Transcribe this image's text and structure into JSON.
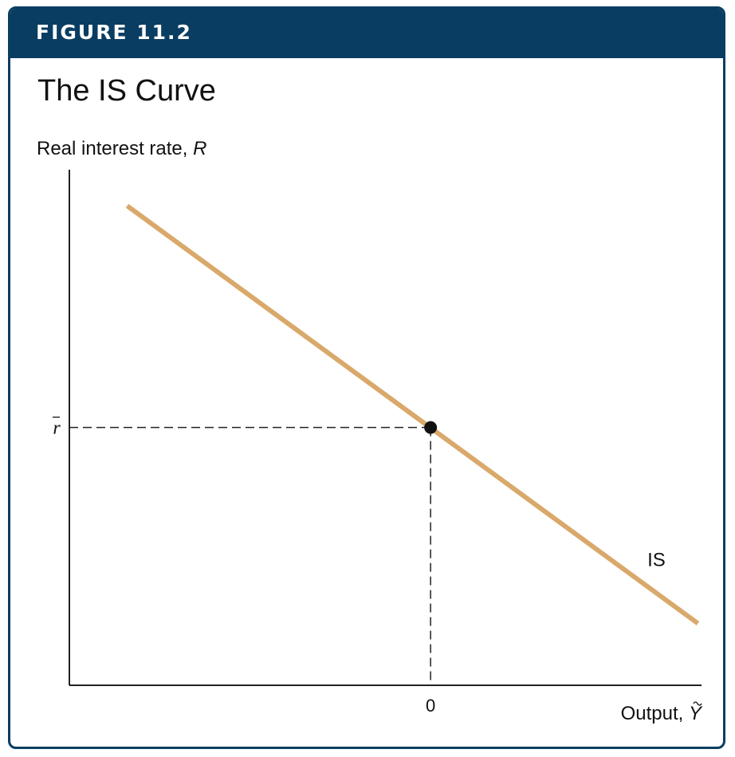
{
  "figure": {
    "label": "FIGURE 11.2",
    "title": "The IS Curve"
  },
  "colors": {
    "header_bg": "#0a3d62",
    "curve": "#d9a96b",
    "axis": "#222222",
    "point": "#111111"
  },
  "chart_data": {
    "type": "line",
    "title": "The IS Curve",
    "ylabel": "Real interest rate, ",
    "ylabel_var": "R",
    "xlabel": "Output, ",
    "xlabel_var": "Y",
    "x_ticks": [
      {
        "value": 0,
        "label": "0"
      }
    ],
    "y_ticks": [
      {
        "value": 0,
        "label": "r"
      }
    ],
    "xlim": [
      -1,
      0.75
    ],
    "ylim": [
      -1,
      1
    ],
    "grid": false,
    "series": [
      {
        "name": "IS",
        "points": [
          [
            -0.84,
            0.86
          ],
          [
            0.74,
            -0.76
          ]
        ]
      }
    ],
    "equilibrium": {
      "x": 0,
      "y": 0
    },
    "guides": "dashed lines from the point to both axes"
  }
}
